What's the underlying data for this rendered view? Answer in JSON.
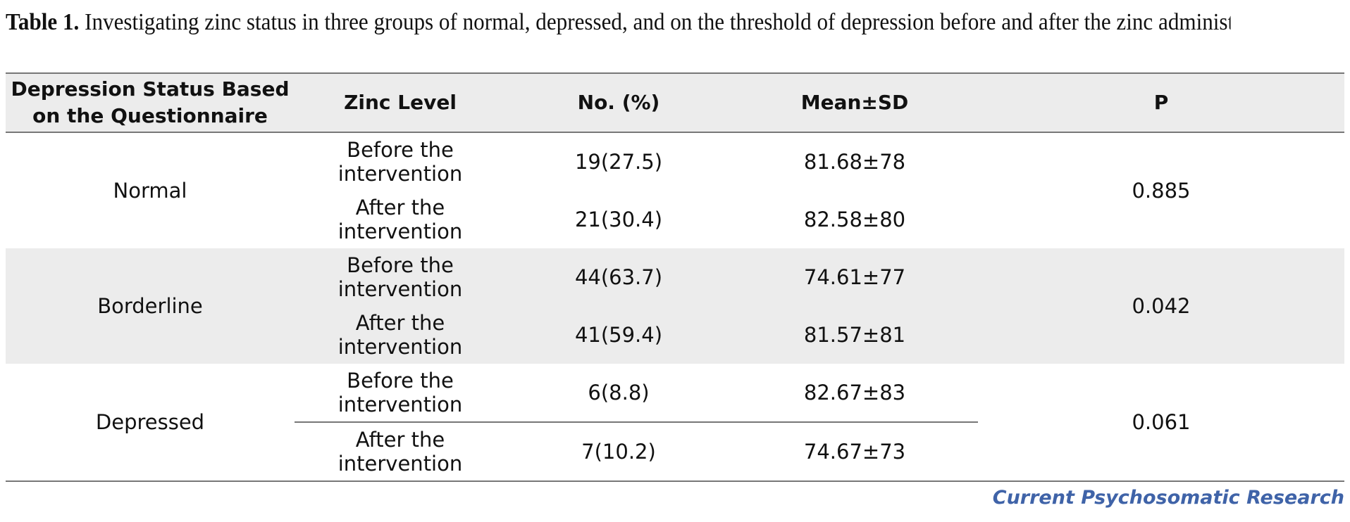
{
  "caption": {
    "label": "Table 1.",
    "text": "Investigating zinc status in three groups of normal, depressed, and on the threshold of depression before and after the zinc administration"
  },
  "table": {
    "headers": {
      "status_line1": "Depression Status Based",
      "status_line2": "on the Questionnaire",
      "zinc": "Zinc Level",
      "no": "No. (%)",
      "mean": "Mean±SD",
      "p": "P"
    },
    "groups": [
      {
        "status": "Normal",
        "p": "0.885",
        "rows": [
          {
            "zinc": "Before the intervention",
            "no": "19(27.5)",
            "mean": "81.68±78"
          },
          {
            "zinc": "After the intervention",
            "no": "21(30.4)",
            "mean": "82.58±80"
          }
        ]
      },
      {
        "status": "Borderline",
        "p": "0.042",
        "rows": [
          {
            "zinc": "Before the intervention",
            "no": "44(63.7)",
            "mean": "74.61±77"
          },
          {
            "zinc": "After the intervention",
            "no": "41(59.4)",
            "mean": "81.57±81"
          }
        ]
      },
      {
        "status": "Depressed",
        "p": "0.061",
        "rows": [
          {
            "zinc": "Before the intervention",
            "no": "6(8.8)",
            "mean": "82.67±83"
          },
          {
            "zinc": "After the intervention",
            "no": "7(10.2)",
            "mean": "74.67±73"
          }
        ]
      }
    ]
  },
  "source": "Current Psychosomatic Research"
}
